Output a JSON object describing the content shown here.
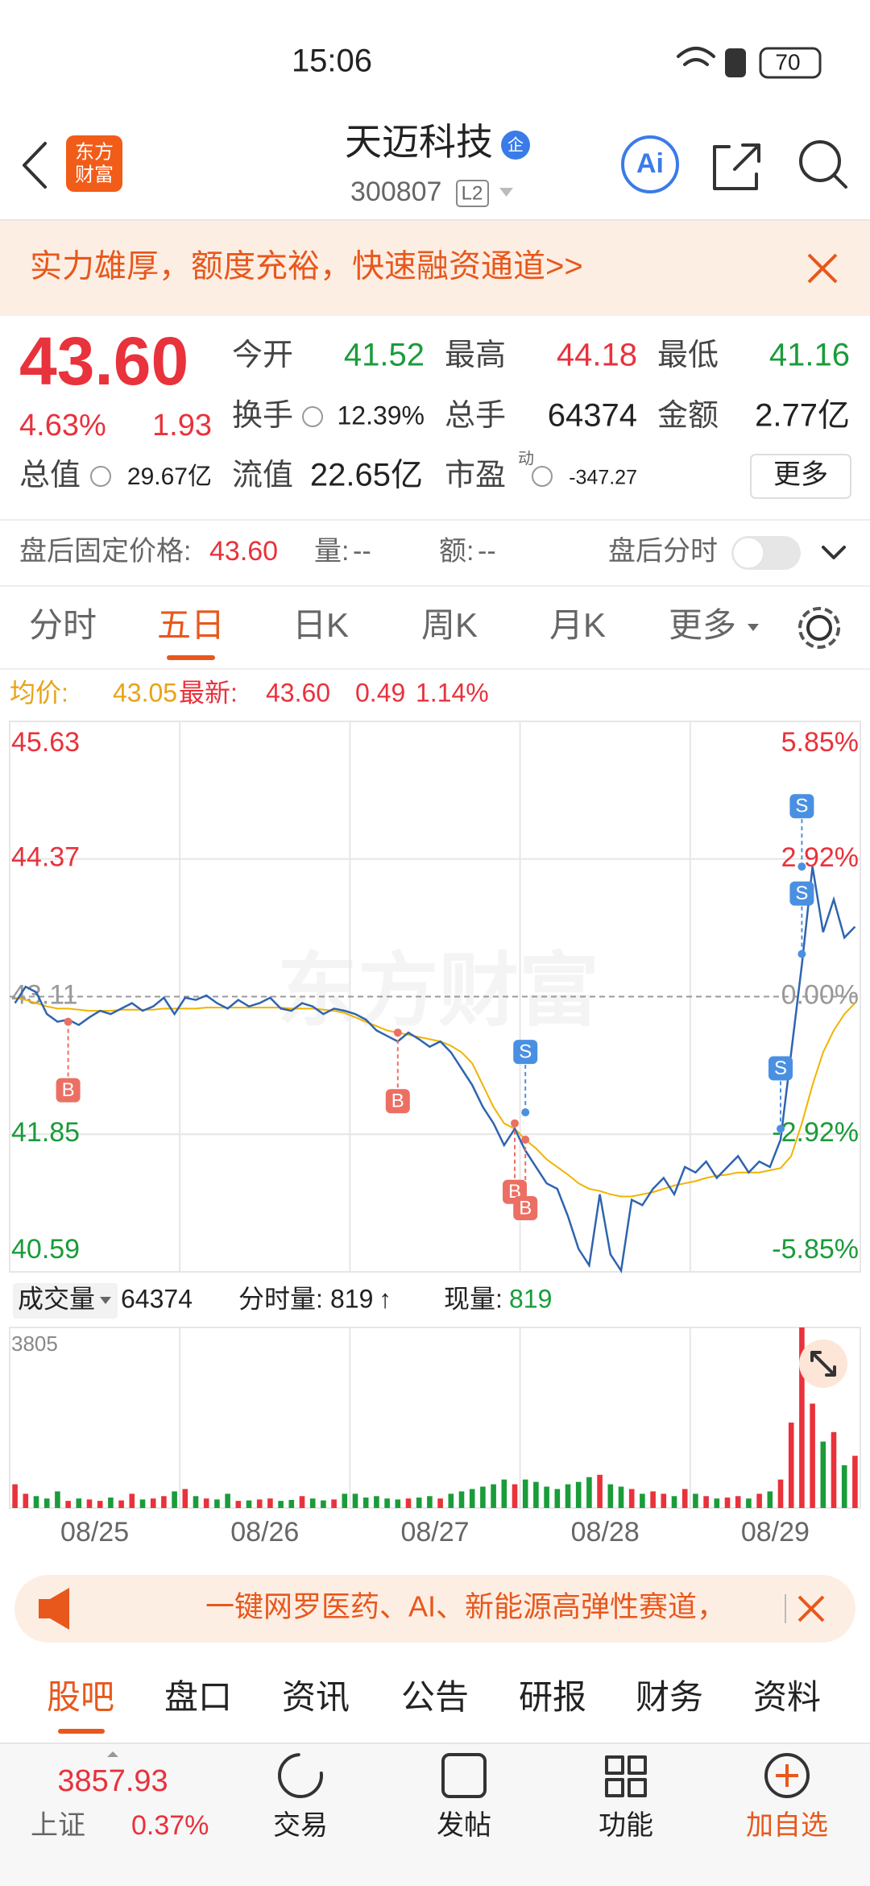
{
  "status_bar": {
    "time": "15:06",
    "battery": "70"
  },
  "header": {
    "logo": [
      "东方",
      "财富"
    ],
    "name": "天迈科技",
    "badge": "企",
    "code": "300807",
    "level": "L2",
    "ai": "Ai"
  },
  "banner": {
    "text": "实力雄厚，额度充裕，快速融资通道>>"
  },
  "quote": {
    "price": "43.60",
    "change_pct": "4.63%",
    "change": "1.93",
    "fields": [
      {
        "label": "今开",
        "value": "41.52"
      },
      {
        "label": "最高",
        "value": "44.18"
      },
      {
        "label": "最低",
        "value": "41.16"
      },
      {
        "label": "换手",
        "value": "12.39%"
      },
      {
        "label": "总手",
        "value": "64374"
      },
      {
        "label": "金额",
        "value": "2.77亿"
      },
      {
        "label": "总值",
        "value": "29.67亿"
      },
      {
        "label": "流值",
        "value": "22.65亿"
      },
      {
        "label": "市盈",
        "value": "-347.27"
      }
    ],
    "pe_tag": "动",
    "more": "更多"
  },
  "after_hours": {
    "label": "盘后固定价格:",
    "price": "43.60",
    "volume_label": "量:",
    "volume": "--",
    "amount_label": "额:",
    "amount": "--",
    "toggle_label": "盘后分时"
  },
  "chart_tabs": [
    "分时",
    "五日",
    "日K",
    "周K",
    "月K",
    "更多"
  ],
  "chart_info": {
    "avg_label": "均价:",
    "avg": "43.05",
    "latest_label": "最新:",
    "latest": "43.60",
    "change": "0.49",
    "change_pct": "1.14%"
  },
  "watermark": "东方财富",
  "chart_data": [
    {
      "type": "line",
      "xlim": [
        -0.5,
        79.5
      ],
      "xticks": [
        {
          "value": 7.5,
          "label": "08/25"
        },
        {
          "value": 23.5,
          "label": "08/26"
        },
        {
          "value": 39.5,
          "label": "08/27"
        },
        {
          "value": 55.5,
          "label": "08/28"
        },
        {
          "value": 71.5,
          "label": "08/29"
        }
      ],
      "xgrid": [
        15.5,
        31.5,
        47.5,
        63.5
      ],
      "ylim": [
        40.59,
        45.63
      ],
      "yticks": [
        45.63,
        44.37,
        43.11,
        41.85,
        40.59
      ],
      "y2lim": [
        -5.85,
        5.85
      ],
      "y2ticks": [
        {
          "value": 5.85,
          "label": "5.85%"
        },
        {
          "value": 2.92,
          "label": "2.92%"
        },
        {
          "value": 0,
          "label": "0.00%"
        },
        {
          "value": -2.92,
          "label": "-2.92%"
        },
        {
          "value": -5.85,
          "label": "-5.85%"
        }
      ],
      "series": [
        {
          "color": "#2f64b0",
          "values": [
            43.05,
            43.2,
            43.15,
            42.95,
            42.88,
            42.9,
            42.85,
            42.92,
            42.98,
            42.95,
            43.0,
            43.05,
            42.98,
            43.02,
            43.1,
            42.95,
            43.1,
            43.08,
            43.12,
            43.05,
            43.0,
            43.08,
            43.02,
            43.05,
            43.1,
            43.0,
            42.98,
            43.05,
            43.02,
            42.95,
            43.0,
            42.98,
            42.95,
            42.9,
            42.8,
            42.75,
            42.7,
            42.78,
            42.72,
            42.65,
            42.7,
            42.6,
            42.45,
            42.3,
            42.1,
            41.95,
            41.75,
            41.9,
            41.7,
            41.55,
            41.4,
            41.35,
            41.1,
            40.8,
            40.65,
            41.3,
            40.75,
            40.6,
            41.25,
            41.2,
            41.35,
            41.45,
            41.3,
            41.55,
            41.5,
            41.6,
            41.45,
            41.55,
            41.65,
            41.5,
            41.6,
            41.55,
            41.8,
            42.6,
            43.4,
            44.3,
            43.7,
            44.0,
            43.65,
            43.75
          ]
        },
        {
          "color": "#f0b400",
          "values": [
            43.1,
            43.08,
            43.05,
            43.02,
            43.0,
            43.0,
            42.99,
            42.98,
            42.98,
            42.98,
            42.99,
            42.99,
            42.99,
            42.99,
            43.0,
            43.0,
            43.0,
            43.0,
            43.01,
            43.01,
            43.01,
            43.01,
            43.01,
            43.01,
            43.01,
            43.01,
            43.0,
            43.0,
            43.0,
            42.99,
            42.98,
            42.96,
            42.92,
            42.88,
            42.84,
            42.8,
            42.78,
            42.76,
            42.74,
            42.72,
            42.7,
            42.66,
            42.6,
            42.5,
            42.3,
            42.1,
            41.95,
            41.9,
            41.8,
            41.72,
            41.62,
            41.55,
            41.48,
            41.4,
            41.35,
            41.33,
            41.3,
            41.28,
            41.28,
            41.3,
            41.32,
            41.35,
            41.38,
            41.4,
            41.42,
            41.45,
            41.47,
            41.48,
            41.5,
            41.5,
            41.5,
            41.52,
            41.54,
            41.65,
            41.95,
            42.3,
            42.6,
            42.8,
            42.95,
            43.05
          ]
        }
      ],
      "signals": [
        {
          "label": "B",
          "x": 5,
          "y": 42.88,
          "color": "#ec6f63"
        },
        {
          "label": "B",
          "x": 36,
          "y": 42.78,
          "color": "#ec6f63"
        },
        {
          "label": "B",
          "x": 47,
          "y": 41.95,
          "color": "#ec6f63"
        },
        {
          "label": "B",
          "x": 48,
          "y": 41.8,
          "color": "#ec6f63"
        },
        {
          "label": "S",
          "x": 48,
          "y": 42.05,
          "color": "#4a90e2"
        },
        {
          "label": "S",
          "x": 72,
          "y": 41.9,
          "color": "#4a90e2"
        },
        {
          "label": "S",
          "x": 74,
          "y": 43.5,
          "color": "#4a90e2"
        },
        {
          "label": "S",
          "x": 74,
          "y": 44.3,
          "color": "#4a90e2"
        }
      ]
    },
    {
      "type": "bar",
      "ylim": [
        0,
        3805
      ],
      "yticks": [
        3805
      ],
      "colors": [
        "#e8323c",
        "#1a9c3a"
      ],
      "values": [
        500,
        300,
        250,
        200,
        350,
        150,
        200,
        180,
        150,
        220,
        160,
        300,
        180,
        200,
        250,
        350,
        400,
        250,
        200,
        180,
        300,
        150,
        160,
        180,
        200,
        150,
        170,
        250,
        200,
        160,
        180,
        300,
        300,
        220,
        250,
        200,
        180,
        200,
        220,
        250,
        200,
        300,
        350,
        400,
        450,
        500,
        600,
        500,
        600,
        550,
        450,
        400,
        500,
        550,
        650,
        700,
        500,
        450,
        400,
        300,
        350,
        300,
        250,
        400,
        300,
        250,
        200,
        220,
        250,
        200,
        300,
        350,
        600,
        1800,
        3805,
        2200,
        1400,
        1600,
        900,
        1100
      ]
    }
  ],
  "volume_info": {
    "label": "成交量",
    "total": "64374",
    "minute_label": "分时量:",
    "minute": "819",
    "arrow": "↑",
    "current_label": "现量:",
    "current": "819"
  },
  "promo": {
    "text": "一键网罗医药、AI、新能源高弹性赛道，"
  },
  "info_tabs": [
    "股吧",
    "盘口",
    "资讯",
    "公告",
    "研报",
    "财务",
    "资料"
  ],
  "bottom_bar": {
    "index_value": "3857.93",
    "index_name": "上证",
    "index_change": "0.37%",
    "items": [
      "交易",
      "发帖",
      "功能",
      "加自选"
    ]
  }
}
